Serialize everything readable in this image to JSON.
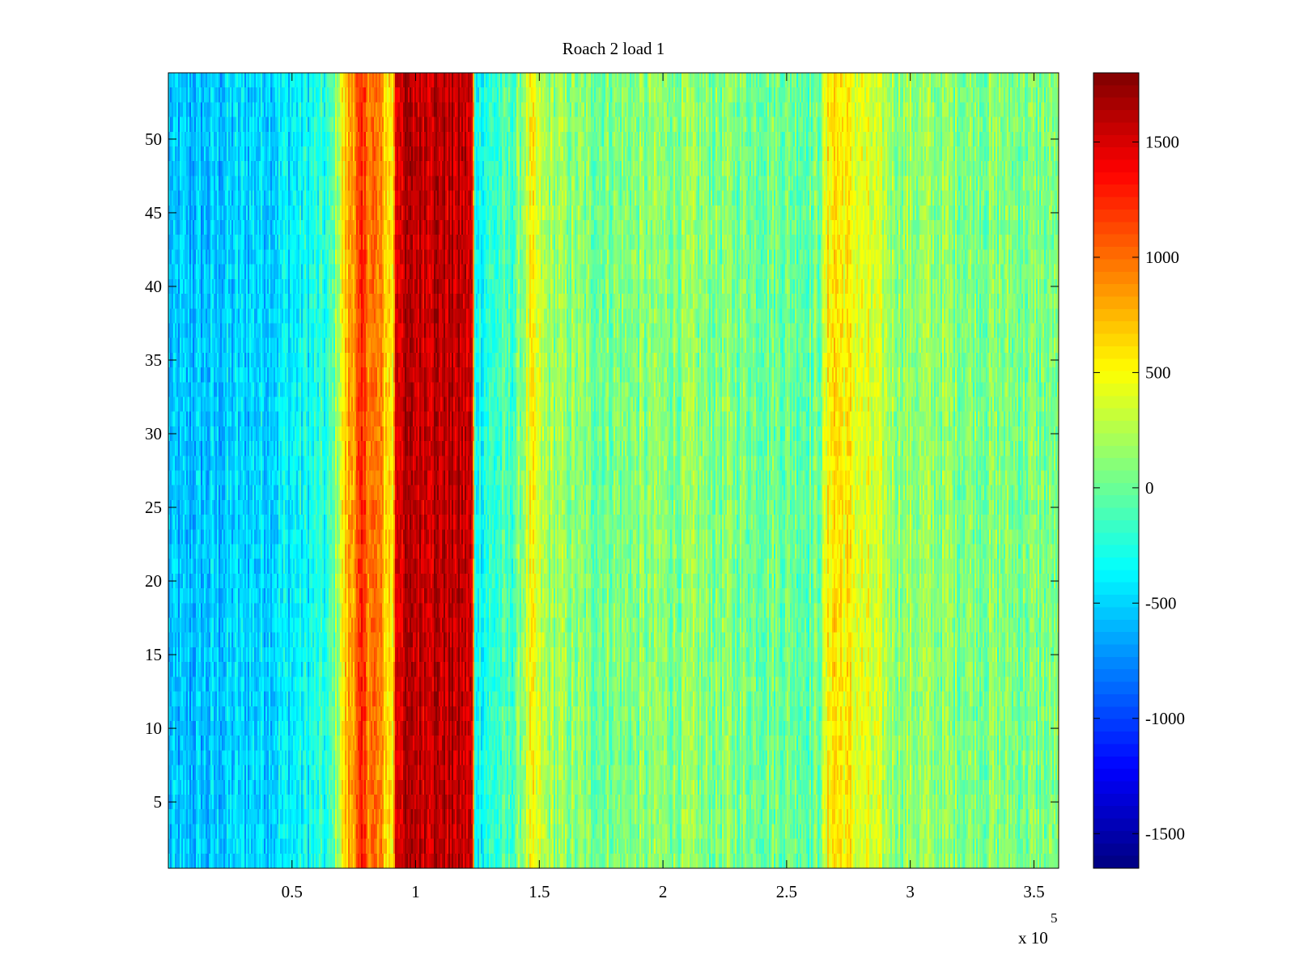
{
  "chart_data": {
    "type": "heatmap",
    "title": "Roach 2 load 1",
    "xlabel": "",
    "ylabel": "",
    "x_range": [
      0,
      360000
    ],
    "y_range": [
      0.5,
      54.5
    ],
    "x_ticks": [
      50000,
      100000,
      150000,
      200000,
      250000,
      300000,
      350000
    ],
    "x_tick_labels": [
      "0.5",
      "1",
      "1.5",
      "2",
      "2.5",
      "3",
      "3.5"
    ],
    "x_exponent_label": {
      "base": "x 10",
      "exp": "5"
    },
    "y_ticks": [
      5,
      10,
      15,
      20,
      25,
      30,
      35,
      40,
      45,
      50
    ],
    "y_tick_labels": [
      "5",
      "10",
      "15",
      "20",
      "25",
      "30",
      "35",
      "40",
      "45",
      "50"
    ],
    "colorbar": {
      "colormap": "jet",
      "range": [
        -1650,
        1800
      ],
      "ticks": [
        -1500,
        -1000,
        -500,
        0,
        500,
        1000,
        1500
      ],
      "tick_labels": [
        "-1500",
        "-1000",
        "-500",
        "0",
        "500",
        "1000",
        "1500"
      ]
    },
    "rows": 54,
    "column_profile": [
      {
        "x": 0,
        "value": -600
      },
      {
        "x": 20000,
        "value": -550
      },
      {
        "x": 50000,
        "value": -400
      },
      {
        "x": 65000,
        "value": -250
      },
      {
        "x": 72000,
        "value": 700
      },
      {
        "x": 78000,
        "value": 1150
      },
      {
        "x": 85000,
        "value": 900
      },
      {
        "x": 91000,
        "value": 500
      },
      {
        "x": 92000,
        "value": 1550
      },
      {
        "x": 105000,
        "value": 1620
      },
      {
        "x": 118000,
        "value": 1580
      },
      {
        "x": 123000,
        "value": 1500
      },
      {
        "x": 124000,
        "value": -300
      },
      {
        "x": 140000,
        "value": -100
      },
      {
        "x": 147000,
        "value": 450
      },
      {
        "x": 152000,
        "value": 200
      },
      {
        "x": 170000,
        "value": 50
      },
      {
        "x": 200000,
        "value": 100
      },
      {
        "x": 240000,
        "value": 50
      },
      {
        "x": 263000,
        "value": 0
      },
      {
        "x": 268000,
        "value": 650
      },
      {
        "x": 280000,
        "value": 400
      },
      {
        "x": 295000,
        "value": 150
      },
      {
        "x": 320000,
        "value": 100
      },
      {
        "x": 360000,
        "value": 50
      }
    ],
    "noise_amplitude": 220
  }
}
